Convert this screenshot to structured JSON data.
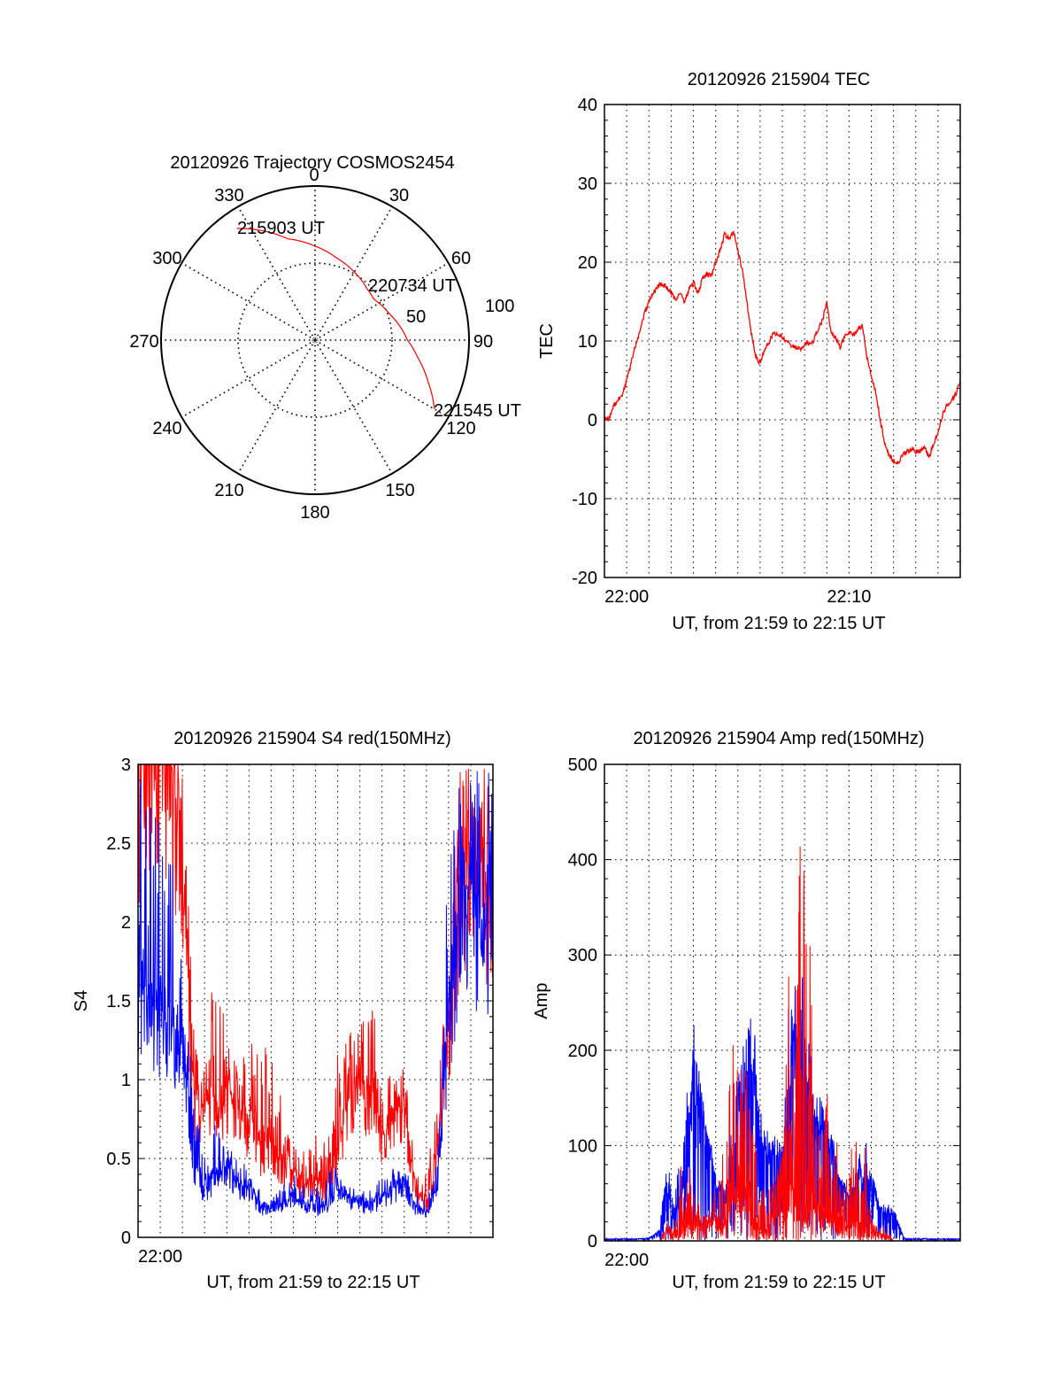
{
  "chart_data": [
    {
      "id": "trajectory",
      "type": "polar",
      "title": "20120926 Trajectory COSMOS2454",
      "azimuth_ticks": [
        "0",
        "30",
        "60",
        "90",
        "120",
        "150",
        "180",
        "210",
        "240",
        "270",
        "300",
        "330"
      ],
      "radial_ticks": [
        "50",
        "100"
      ],
      "rlim": [
        0,
        100
      ],
      "grid": true,
      "series": [
        {
          "name": "trajectory",
          "color": "#ff0000",
          "points": [
            {
              "az": 325,
              "r": 88.5
            },
            {
              "az": 335,
              "r": 78
            },
            {
              "az": 345,
              "r": 68
            },
            {
              "az": 0,
              "r": 61
            },
            {
              "az": 15,
              "r": 55
            },
            {
              "az": 30,
              "r": 51
            },
            {
              "az": 45,
              "r": 47.5
            },
            {
              "az": 55,
              "r": 46.5
            },
            {
              "az": 70,
              "r": 51
            },
            {
              "az": 90,
              "r": 60
            },
            {
              "az": 100,
              "r": 68
            },
            {
              "az": 110,
              "r": 78
            },
            {
              "az": 120,
              "r": 89.5
            }
          ]
        }
      ],
      "annotations": [
        {
          "text": "215903 UT",
          "az": 322,
          "r": 90
        },
        {
          "text": "220734 UT",
          "az": 52,
          "r": 47
        },
        {
          "text": "221545 UT",
          "az": 120,
          "r": 90
        }
      ]
    },
    {
      "id": "tec",
      "type": "line",
      "title": "20120926 215904 TEC",
      "xlabel": "UT, from 21:59 to 22:15 UT",
      "ylabel": "TEC",
      "xlim_minutes": [
        0,
        16
      ],
      "ylim": [
        -20,
        40
      ],
      "yticks": [
        "-20",
        "-10",
        "0",
        "10",
        "20",
        "30",
        "40"
      ],
      "xticks": [
        {
          "label": "22:00",
          "minute": 1
        },
        {
          "label": "22:10",
          "minute": 11
        }
      ],
      "grid": true,
      "series": [
        {
          "name": "TEC",
          "color": "#ff0000",
          "x": [
            0.0,
            0.2,
            0.4,
            0.6,
            0.8,
            1.0,
            1.2,
            1.4,
            1.6,
            1.8,
            2.0,
            2.2,
            2.4,
            2.6,
            2.8,
            3.0,
            3.2,
            3.4,
            3.6,
            3.8,
            4.0,
            4.2,
            4.4,
            4.6,
            4.8,
            5.0,
            5.2,
            5.4,
            5.6,
            5.8,
            6.0,
            6.2,
            6.4,
            6.6,
            6.8,
            7.0,
            7.2,
            7.4,
            7.6,
            7.8,
            8.0,
            8.2,
            8.4,
            8.6,
            8.8,
            9.0,
            9.2,
            9.4,
            9.6,
            9.8,
            10.0,
            10.2,
            10.4,
            10.6,
            10.8,
            11.0,
            11.2,
            11.4,
            11.6,
            11.8,
            12.0,
            12.2,
            12.4,
            12.6,
            12.8,
            13.0,
            13.2,
            13.4,
            13.6,
            13.8,
            14.0,
            14.2,
            14.4,
            14.6,
            14.8,
            15.0,
            15.2,
            15.4,
            15.6,
            15.8,
            16.0
          ],
          "y": [
            0.2,
            0.0,
            1.8,
            2.5,
            3.2,
            5.0,
            7.2,
            9.5,
            11.2,
            13.5,
            15.0,
            16.0,
            17.0,
            17.2,
            16.8,
            16.0,
            15.2,
            16.2,
            15.0,
            16.5,
            17.5,
            16.0,
            17.8,
            18.5,
            18.2,
            20.0,
            21.5,
            23.5,
            23.0,
            24.0,
            21.5,
            19.0,
            15.0,
            11.0,
            8.0,
            7.2,
            8.8,
            9.8,
            11.0,
            10.8,
            10.5,
            10.0,
            9.5,
            9.2,
            9.0,
            9.5,
            9.8,
            10.0,
            11.5,
            12.5,
            15.0,
            11.0,
            10.5,
            9.2,
            10.5,
            11.2,
            10.8,
            11.5,
            12.0,
            8.0,
            5.5,
            3.5,
            0.0,
            -3.0,
            -4.5,
            -5.2,
            -5.5,
            -4.5,
            -4.0,
            -3.8,
            -4.0,
            -4.0,
            -3.5,
            -4.8,
            -3.0,
            -1.5,
            0.5,
            1.8,
            2.5,
            3.2,
            5.0
          ]
        }
      ]
    },
    {
      "id": "s4",
      "type": "line",
      "title": "20120926 215904 S4 red(150MHz)",
      "xlabel": "UT, from 21:59 to 22:15 UT",
      "ylabel": "S4",
      "xlim_minutes": [
        0,
        16
      ],
      "ylim": [
        0,
        3
      ],
      "yticks": [
        "0",
        "0.5",
        "1",
        "1.5",
        "2",
        "2.5",
        "3"
      ],
      "xticks": [
        {
          "label": "22:00",
          "minute": 1
        }
      ],
      "grid": true,
      "series": [
        {
          "name": "S4 red",
          "color": "#ff0000",
          "x": [
            0.0,
            0.5,
            1.0,
            1.5,
            2.0,
            2.5,
            3.0,
            3.5,
            4.0,
            4.5,
            5.0,
            5.5,
            6.0,
            6.5,
            7.0,
            7.5,
            8.0,
            8.5,
            9.0,
            9.5,
            10.0,
            10.5,
            11.0,
            11.5,
            12.0,
            12.5,
            13.0,
            13.5,
            14.0,
            14.5,
            15.0,
            15.5,
            16.0
          ],
          "y": [
            3.0,
            3.0,
            3.0,
            3.0,
            2.4,
            0.9,
            0.8,
            0.85,
            0.9,
            0.75,
            0.7,
            0.55,
            0.6,
            0.45,
            0.4,
            0.3,
            0.35,
            0.3,
            0.5,
            0.9,
            1.0,
            0.85,
            0.6,
            0.8,
            0.8,
            0.3,
            0.2,
            0.5,
            1.3,
            2.0,
            2.5,
            2.2,
            2.3
          ],
          "peaks_y": [
            3.0,
            3.0,
            3.0,
            3.0,
            3.0,
            1.4,
            1.1,
            1.9,
            1.25,
            1.2,
            1.25,
            1.2,
            1.55,
            0.8,
            0.6,
            0.55,
            0.7,
            0.6,
            1.2,
            1.35,
            1.35,
            1.55,
            1.1,
            1.1,
            1.1,
            0.5,
            0.4,
            0.9,
            2.0,
            3.0,
            3.0,
            3.0,
            3.0
          ]
        },
        {
          "name": "S4 blue",
          "color": "#0000ff",
          "x": [
            0.0,
            0.5,
            1.0,
            1.5,
            2.0,
            2.5,
            3.0,
            3.5,
            4.0,
            4.5,
            5.0,
            5.5,
            6.0,
            6.5,
            7.0,
            7.5,
            8.0,
            8.5,
            9.0,
            9.5,
            10.0,
            10.5,
            11.0,
            11.5,
            12.0,
            12.5,
            13.0,
            13.5,
            14.0,
            14.5,
            15.0,
            15.5,
            16.0
          ],
          "y": [
            1.6,
            1.5,
            1.4,
            1.3,
            1.2,
            0.5,
            0.3,
            0.4,
            0.45,
            0.35,
            0.3,
            0.2,
            0.18,
            0.2,
            0.25,
            0.2,
            0.18,
            0.2,
            0.3,
            0.25,
            0.22,
            0.2,
            0.25,
            0.3,
            0.35,
            0.2,
            0.15,
            0.3,
            1.4,
            2.0,
            2.2,
            1.8,
            2.0
          ],
          "peaks_y": [
            3.0,
            3.0,
            2.6,
            2.4,
            2.3,
            0.9,
            0.5,
            0.8,
            0.6,
            0.5,
            0.5,
            0.3,
            0.25,
            0.35,
            0.4,
            0.35,
            0.3,
            0.45,
            0.45,
            0.35,
            0.3,
            0.35,
            0.45,
            0.6,
            0.45,
            0.3,
            0.25,
            0.5,
            2.5,
            3.0,
            3.0,
            3.0,
            3.0
          ]
        }
      ]
    },
    {
      "id": "amp",
      "type": "line",
      "title": "20120926 215904 Amp red(150MHz)",
      "xlabel": "UT, from 21:59 to 22:15 UT",
      "ylabel": "Amp",
      "xlim_minutes": [
        0,
        16
      ],
      "ylim": [
        0,
        500
      ],
      "yticks": [
        "0",
        "100",
        "200",
        "300",
        "400",
        "500"
      ],
      "xticks": [
        {
          "label": "22:00",
          "minute": 1
        }
      ],
      "grid": true,
      "series": [
        {
          "name": "Amp blue",
          "color": "#0000ff",
          "x": [
            0.0,
            0.5,
            1.0,
            1.5,
            2.0,
            2.5,
            2.8,
            3.0,
            3.3,
            3.5,
            3.8,
            4.0,
            4.3,
            4.5,
            4.8,
            5.0,
            5.3,
            5.5,
            5.8,
            6.0,
            6.3,
            6.5,
            6.8,
            7.0,
            7.3,
            7.5,
            7.8,
            8.0,
            8.3,
            8.5,
            8.8,
            9.0,
            9.3,
            9.5,
            9.8,
            10.0,
            10.3,
            10.5,
            10.8,
            11.0,
            11.3,
            11.5,
            11.8,
            12.0,
            12.3,
            12.5,
            12.8,
            13.0,
            13.5,
            14.0,
            14.5,
            15.0,
            15.5,
            16.0
          ],
          "y": [
            2,
            2,
            2,
            2,
            3,
            10,
            60,
            25,
            30,
            50,
            80,
            180,
            140,
            120,
            100,
            55,
            50,
            45,
            70,
            130,
            150,
            190,
            160,
            110,
            90,
            80,
            90,
            80,
            140,
            200,
            220,
            180,
            150,
            120,
            110,
            100,
            90,
            70,
            50,
            40,
            50,
            60,
            70,
            55,
            40,
            30,
            30,
            25,
            2,
            2,
            2,
            2,
            2,
            2
          ],
          "peaks_y": [
            2,
            2,
            2,
            2,
            3,
            12,
            110,
            60,
            80,
            105,
            180,
            240,
            200,
            135,
            70,
            60,
            60,
            60,
            170,
            200,
            230,
            240,
            215,
            120,
            120,
            105,
            110,
            105,
            260,
            270,
            310,
            260,
            170,
            160,
            150,
            140,
            110,
            70,
            55,
            50,
            75,
            100,
            110,
            80,
            45,
            40,
            40,
            35,
            3,
            2,
            2,
            2,
            2,
            2
          ]
        },
        {
          "name": "Amp red",
          "color": "#ff0000",
          "x": [
            0.0,
            0.5,
            1.0,
            1.5,
            2.0,
            2.5,
            2.8,
            3.0,
            3.3,
            3.5,
            3.8,
            4.0,
            4.3,
            4.5,
            4.8,
            5.0,
            5.3,
            5.5,
            5.8,
            6.0,
            6.3,
            6.5,
            6.8,
            7.0,
            7.3,
            7.5,
            7.8,
            8.0,
            8.3,
            8.5,
            8.8,
            9.0,
            9.3,
            9.5,
            9.8,
            10.0,
            10.3,
            10.5,
            10.8,
            11.0,
            11.3,
            11.5,
            11.8,
            12.0,
            12.3,
            12.5,
            12.8,
            13.0,
            13.5,
            14.0,
            14.5,
            15.0,
            15.5,
            16.0
          ],
          "y": [
            0,
            0,
            0,
            0,
            0,
            0,
            10,
            5,
            6,
            10,
            15,
            20,
            18,
            15,
            20,
            22,
            18,
            20,
            45,
            50,
            45,
            30,
            15,
            10,
            10,
            20,
            40,
            45,
            55,
            50,
            20,
            25,
            30,
            35,
            28,
            22,
            20,
            15,
            12,
            15,
            20,
            18,
            12,
            10,
            8,
            6,
            5,
            0,
            0,
            0,
            0,
            0,
            0,
            0
          ],
          "peaks_y": [
            0,
            0,
            0,
            0,
            0,
            0,
            20,
            15,
            30,
            100,
            110,
            60,
            40,
            30,
            30,
            90,
            100,
            100,
            300,
            200,
            190,
            160,
            100,
            60,
            50,
            60,
            80,
            90,
            330,
            200,
            430,
            420,
            300,
            180,
            130,
            170,
            130,
            100,
            100,
            120,
            110,
            110,
            100,
            30,
            20,
            15,
            10,
            0,
            0,
            0,
            0,
            0,
            0,
            0
          ]
        }
      ]
    }
  ]
}
